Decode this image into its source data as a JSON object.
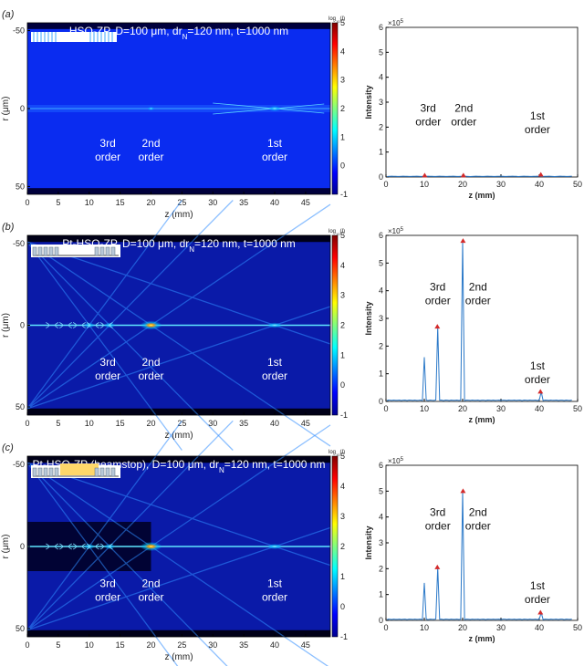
{
  "panels": [
    {
      "letter": "(a)",
      "title": "HSQ-ZP, D=100 μm, drN=120 nm, t=1000 nm",
      "title_parts": [
        "HSQ-ZP, D=100 μm, dr",
        "N",
        "=120 nm, t=1000 nm"
      ],
      "variant": "hsq",
      "map_labels": [
        {
          "text": [
            "3rd",
            "order"
          ],
          "z": 13.0,
          "r": 27
        },
        {
          "text": [
            "2nd",
            "order"
          ],
          "z": 20.0,
          "r": 27
        },
        {
          "text": [
            "1st",
            "order"
          ],
          "z": 40.0,
          "r": 27
        }
      ],
      "intensity_labels": [
        {
          "text": [
            "3rd",
            "order"
          ],
          "z": 11.0,
          "y": 2.1
        },
        {
          "text": [
            "2nd",
            "order"
          ],
          "z": 20.3,
          "y": 2.1
        },
        {
          "text": [
            "1st",
            "order"
          ],
          "z": 39.5,
          "y": 1.8
        }
      ]
    },
    {
      "letter": "(b)",
      "title": "Pt-HSQ-ZP, D=100 μm, drN=120 nm, t=1000 nm",
      "title_parts": [
        "Pt-HSQ-ZP, D=100 μm, dr",
        "N",
        "=120 nm, t=1000 nm"
      ],
      "variant": "pt",
      "map_labels": [
        {
          "text": [
            "3rd",
            "order"
          ],
          "z": 13.0,
          "r": 27
        },
        {
          "text": [
            "2nd",
            "order"
          ],
          "z": 20.0,
          "r": 27
        },
        {
          "text": [
            "1st",
            "order"
          ],
          "z": 40.0,
          "r": 27
        }
      ],
      "intensity_labels": [
        {
          "text": [
            "3rd",
            "order"
          ],
          "z": 13.5,
          "y": 3.55
        },
        {
          "text": [
            "2nd",
            "order"
          ],
          "z": 24.0,
          "y": 3.55
        },
        {
          "text": [
            "1st",
            "order"
          ],
          "z": 39.5,
          "y": 0.7
        }
      ]
    },
    {
      "letter": "(c)",
      "title": "Pt-HSQ-ZP (beamstop), D=100 μm, drN=120 nm, t=1000 nm",
      "title_parts": [
        "Pt-HSQ-ZP (beamstop), D=100 μm, dr",
        "N",
        "=120 nm, t=1000 nm"
      ],
      "variant": "beamstop",
      "map_labels": [
        {
          "text": [
            "3rd",
            "order"
          ],
          "z": 13.0,
          "r": 27
        },
        {
          "text": [
            "2nd",
            "order"
          ],
          "z": 20.0,
          "r": 27
        },
        {
          "text": [
            "1st",
            "order"
          ],
          "z": 40.0,
          "r": 27
        }
      ],
      "intensity_labels": [
        {
          "text": [
            "3rd",
            "order"
          ],
          "z": 13.5,
          "y": 3.55
        },
        {
          "text": [
            "2nd",
            "order"
          ],
          "z": 24.0,
          "y": 3.55
        },
        {
          "text": [
            "1st",
            "order"
          ],
          "z": 39.5,
          "y": 0.7
        }
      ]
    }
  ],
  "colorbar": {
    "label": "log10(I)",
    "label_parts": [
      "log",
      "10",
      "(I)"
    ],
    "ticks": [
      "5",
      "4",
      "3",
      "2",
      "1",
      "0",
      "-1"
    ],
    "range": [
      -1,
      5
    ]
  },
  "chart_data": [
    {
      "type": "heatmap",
      "panel": "(a)",
      "title": "HSQ-ZP, D=100 μm, drN=120 nm, t=1000 nm",
      "xlabel": "z (mm)",
      "ylabel": "r (μm)",
      "xlim": [
        0,
        49
      ],
      "ylim": [
        -55,
        55
      ],
      "xticks": [
        0,
        5,
        10,
        15,
        20,
        25,
        30,
        35,
        40,
        45
      ],
      "yticks": [
        -50,
        0,
        50
      ],
      "colorscale": "jet",
      "zlabel": "log10(I)",
      "zlim": [
        -1,
        5
      ],
      "focal_points_z": [
        13.3,
        20,
        40
      ]
    },
    {
      "type": "line",
      "panel": "(a)",
      "xlabel": "z (mm)",
      "ylabel": "Intensity",
      "xlim": [
        0,
        50
      ],
      "ylim": [
        0,
        6
      ],
      "xticks": [
        0,
        10,
        20,
        30,
        40,
        50
      ],
      "yticks": [
        0,
        1,
        2,
        3,
        4,
        5,
        6
      ],
      "y_multiplier": "×10^5",
      "series": [
        {
          "x": [
            0,
            10,
            13.3,
            20,
            40,
            48
          ],
          "y": [
            0.01,
            0.02,
            0.02,
            0.03,
            0.04,
            0.01
          ]
        }
      ],
      "markers": [
        {
          "z": 10.1,
          "y": 0.06
        },
        {
          "z": 20.2,
          "y": 0.06
        },
        {
          "z": 40.4,
          "y": 0.09
        }
      ]
    },
    {
      "type": "heatmap",
      "panel": "(b)",
      "title": "Pt-HSQ-ZP, D=100 μm, drN=120 nm, t=1000 nm",
      "xlabel": "z (mm)",
      "ylabel": "r (μm)",
      "xlim": [
        0,
        49
      ],
      "ylim": [
        -55,
        55
      ],
      "xticks": [
        0,
        5,
        10,
        15,
        20,
        25,
        30,
        35,
        40,
        45
      ],
      "yticks": [
        -50,
        0,
        50
      ],
      "colorscale": "jet",
      "zlabel": "log10(I)",
      "zlim": [
        -1,
        5
      ],
      "focal_points_z": [
        10,
        13.3,
        20,
        40
      ]
    },
    {
      "type": "line",
      "panel": "(b)",
      "xlabel": "z (mm)",
      "ylabel": "Intensity",
      "xlim": [
        0,
        50
      ],
      "ylim": [
        0,
        6
      ],
      "xticks": [
        0,
        10,
        20,
        30,
        40,
        50
      ],
      "yticks": [
        0,
        1,
        2,
        3,
        4,
        5,
        6
      ],
      "y_multiplier": "×10^5",
      "peaks": [
        {
          "z": 10.0,
          "y": 1.6
        },
        {
          "z": 13.4,
          "y": 2.7
        },
        {
          "z": 20.1,
          "y": 5.8
        },
        {
          "z": 40.3,
          "y": 0.35
        }
      ],
      "markers": [
        {
          "z": 13.4,
          "y": 2.7
        },
        {
          "z": 20.1,
          "y": 5.8
        },
        {
          "z": 40.3,
          "y": 0.35
        }
      ]
    },
    {
      "type": "heatmap",
      "panel": "(c)",
      "title": "Pt-HSQ-ZP (beamstop), D=100 μm, drN=120 nm, t=1000 nm",
      "xlabel": "z (mm)",
      "ylabel": "r (μm)",
      "xlim": [
        0,
        49
      ],
      "ylim": [
        -55,
        55
      ],
      "xticks": [
        0,
        5,
        10,
        15,
        20,
        25,
        30,
        35,
        40,
        45
      ],
      "yticks": [
        -50,
        0,
        50
      ],
      "colorscale": "jet",
      "zlabel": "log10(I)",
      "zlim": [
        -1,
        5
      ],
      "focal_points_z": [
        10,
        13.3,
        20,
        40
      ]
    },
    {
      "type": "line",
      "panel": "(c)",
      "xlabel": "z (mm)",
      "ylabel": "Intensity",
      "xlim": [
        0,
        50
      ],
      "ylim": [
        0,
        6
      ],
      "xticks": [
        0,
        10,
        20,
        30,
        40,
        50
      ],
      "yticks": [
        0,
        1,
        2,
        3,
        4,
        5,
        6
      ],
      "y_multiplier": "×10^5",
      "peaks": [
        {
          "z": 10.0,
          "y": 1.45
        },
        {
          "z": 13.4,
          "y": 2.05
        },
        {
          "z": 20.1,
          "y": 5.0
        },
        {
          "z": 40.3,
          "y": 0.3
        }
      ],
      "markers": [
        {
          "z": 13.4,
          "y": 2.05
        },
        {
          "z": 20.1,
          "y": 5.0
        },
        {
          "z": 40.3,
          "y": 0.3
        }
      ]
    }
  ]
}
